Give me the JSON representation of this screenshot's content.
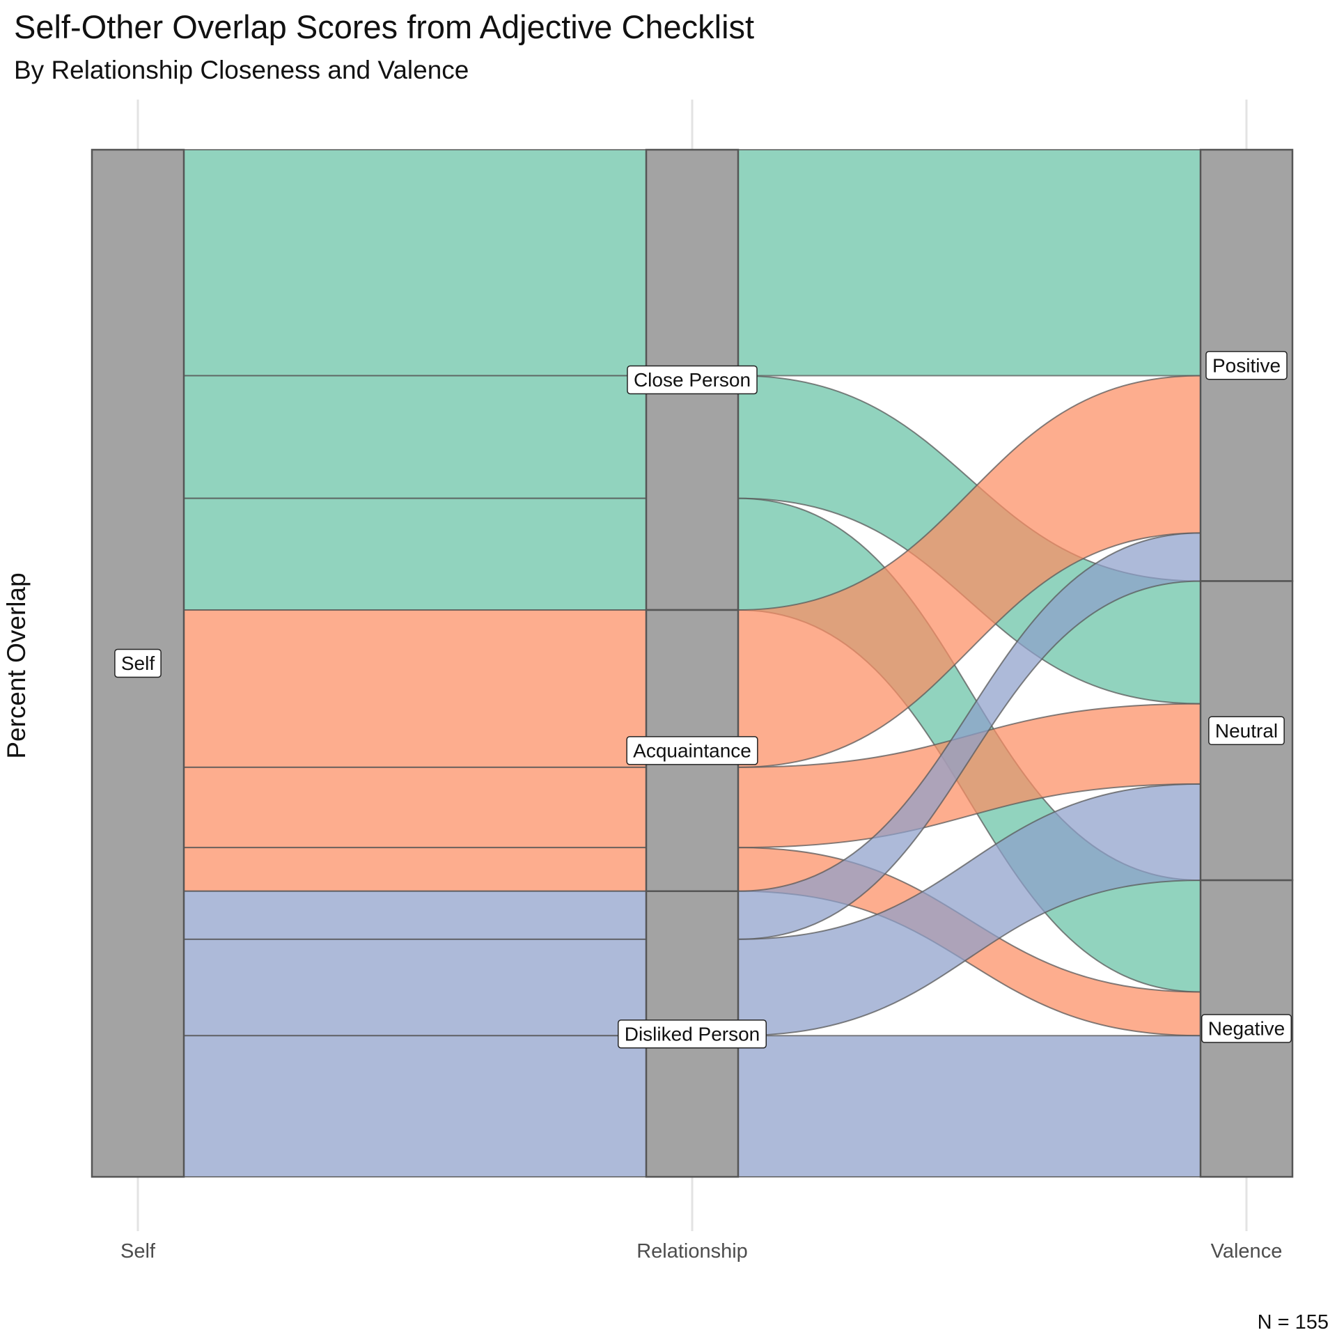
{
  "chart": {
    "title": "Self-Other Overlap Scores from Adjective Checklist",
    "subtitle": "By Relationship Closeness and Valence",
    "caption": "N = 155"
  },
  "chart_data": {
    "type": "alluvial",
    "title": "Self-Other Overlap Scores from Adjective Checklist",
    "subtitle": "By Relationship Closeness and Valence",
    "ylabel": "Percent Overlap",
    "xlabel": "",
    "caption": "N = 155",
    "axes": [
      "Self",
      "Relationship",
      "Valence"
    ],
    "grid": false,
    "legend": "none",
    "colors": {
      "Close Person": "#66c2a5",
      "Acquaintance": "#fc8d62",
      "Disliked Person": "#8da0cb",
      "node_fill": "#a3a3a3",
      "node_stroke": "#555555"
    },
    "nodes": {
      "Self": [
        "Self"
      ],
      "Relationship": [
        "Close Person",
        "Acquaintance",
        "Disliked Person"
      ],
      "Valence": [
        "Positive",
        "Neutral",
        "Negative"
      ]
    },
    "flows": [
      {
        "relationship": "Close Person",
        "valence": "Positive",
        "value": 35.2
      },
      {
        "relationship": "Close Person",
        "valence": "Neutral",
        "value": 19.1
      },
      {
        "relationship": "Close Person",
        "valence": "Negative",
        "value": 17.4
      },
      {
        "relationship": "Acquaintance",
        "valence": "Positive",
        "value": 24.5
      },
      {
        "relationship": "Acquaintance",
        "valence": "Neutral",
        "value": 12.5
      },
      {
        "relationship": "Acquaintance",
        "valence": "Negative",
        "value": 6.8
      },
      {
        "relationship": "Disliked Person",
        "valence": "Positive",
        "value": 7.5
      },
      {
        "relationship": "Disliked Person",
        "valence": "Neutral",
        "value": 15.0
      },
      {
        "relationship": "Disliked Person",
        "valence": "Negative",
        "value": 22.0
      }
    ]
  }
}
